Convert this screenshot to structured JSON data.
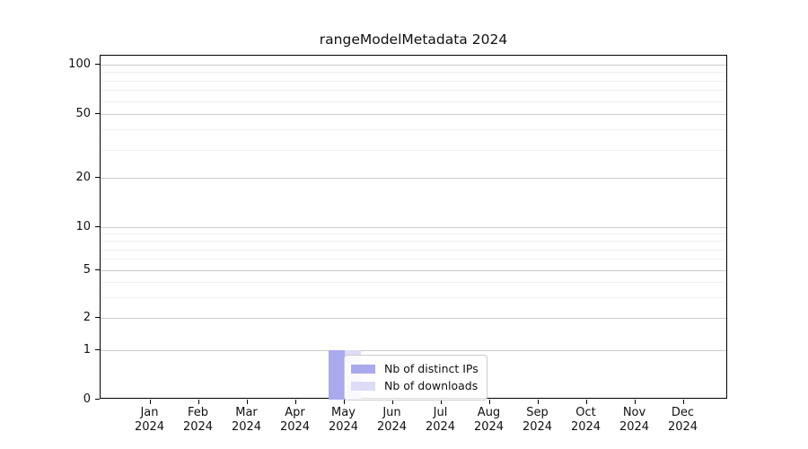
{
  "chart_data": {
    "type": "bar",
    "title": "rangeModelMetadata 2024",
    "categories": [
      "Jan",
      "Feb",
      "Mar",
      "Apr",
      "May",
      "Jun",
      "Jul",
      "Aug",
      "Sep",
      "Oct",
      "Nov",
      "Dec"
    ],
    "x_year_label": "2024",
    "series": [
      {
        "name": "Nb of distinct IPs",
        "color": "#a9a9ee",
        "values": [
          0,
          0,
          0,
          0,
          1,
          0,
          0,
          0,
          0,
          0,
          0,
          0
        ]
      },
      {
        "name": "Nb of downloads",
        "color": "#dcdcf7",
        "values": [
          0,
          0,
          0,
          0,
          1,
          0,
          0,
          0,
          0,
          0,
          0,
          0
        ]
      }
    ],
    "yaxis": {
      "scale": "symlog",
      "tick_values": [
        0,
        1,
        2,
        5,
        10,
        20,
        50,
        100
      ],
      "tick_labels": [
        "0",
        "1",
        "2",
        "5",
        "10",
        "20",
        "50",
        "100"
      ],
      "minor_tick_values": [
        3,
        4,
        6,
        7,
        8,
        9,
        30,
        40,
        60,
        70,
        80,
        90
      ],
      "ylim": [
        0,
        113
      ]
    },
    "xlabel": "",
    "ylabel": "",
    "grid": true,
    "legend": {
      "location": "inside lower center"
    }
  },
  "colors": {
    "major_grid": "#cccccc",
    "minor_grid": "#f0f0f0",
    "spine": "#000000",
    "background": "#ffffff"
  }
}
